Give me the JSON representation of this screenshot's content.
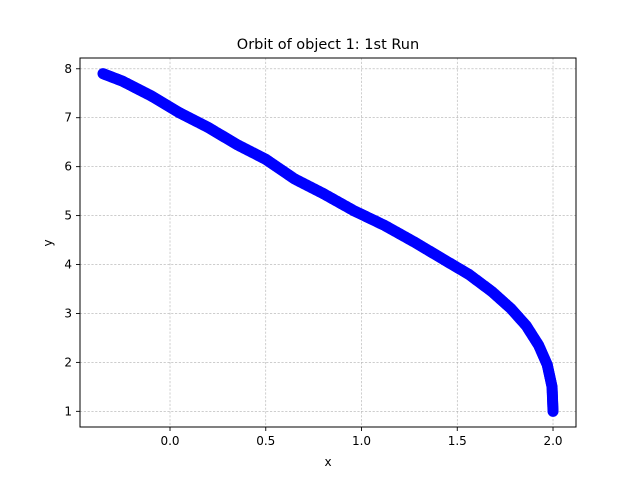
{
  "chart_data": {
    "type": "scatter",
    "title": "Orbit of object 1: 1st Run",
    "xlabel": "x",
    "ylabel": "y",
    "xlim": [
      -0.47,
      2.12
    ],
    "ylim": [
      0.68,
      8.22
    ],
    "xticks": [
      0.0,
      0.5,
      1.0,
      1.5,
      2.0
    ],
    "yticks": [
      1,
      2,
      3,
      4,
      5,
      6,
      7,
      8
    ],
    "xtick_labels": [
      "0.0",
      "0.5",
      "1.0",
      "1.5",
      "2.0"
    ],
    "ytick_labels": [
      "1",
      "2",
      "3",
      "4",
      "5",
      "6",
      "7",
      "8"
    ],
    "grid": true,
    "legend": "none",
    "marker_color": "#0000ff",
    "series": [
      {
        "x": [
          2.0,
          1.995,
          1.97,
          1.925,
          1.86,
          1.78,
          1.68,
          1.56,
          1.43,
          1.28,
          1.12,
          0.96,
          0.8,
          0.65,
          0.5,
          0.35,
          0.2,
          0.05,
          -0.1,
          -0.25,
          -0.35
        ],
        "y": [
          1.0,
          1.5,
          1.95,
          2.35,
          2.75,
          3.1,
          3.45,
          3.8,
          4.1,
          4.45,
          4.8,
          5.1,
          5.45,
          5.75,
          6.15,
          6.45,
          6.8,
          7.1,
          7.45,
          7.75,
          7.9
        ]
      }
    ]
  }
}
